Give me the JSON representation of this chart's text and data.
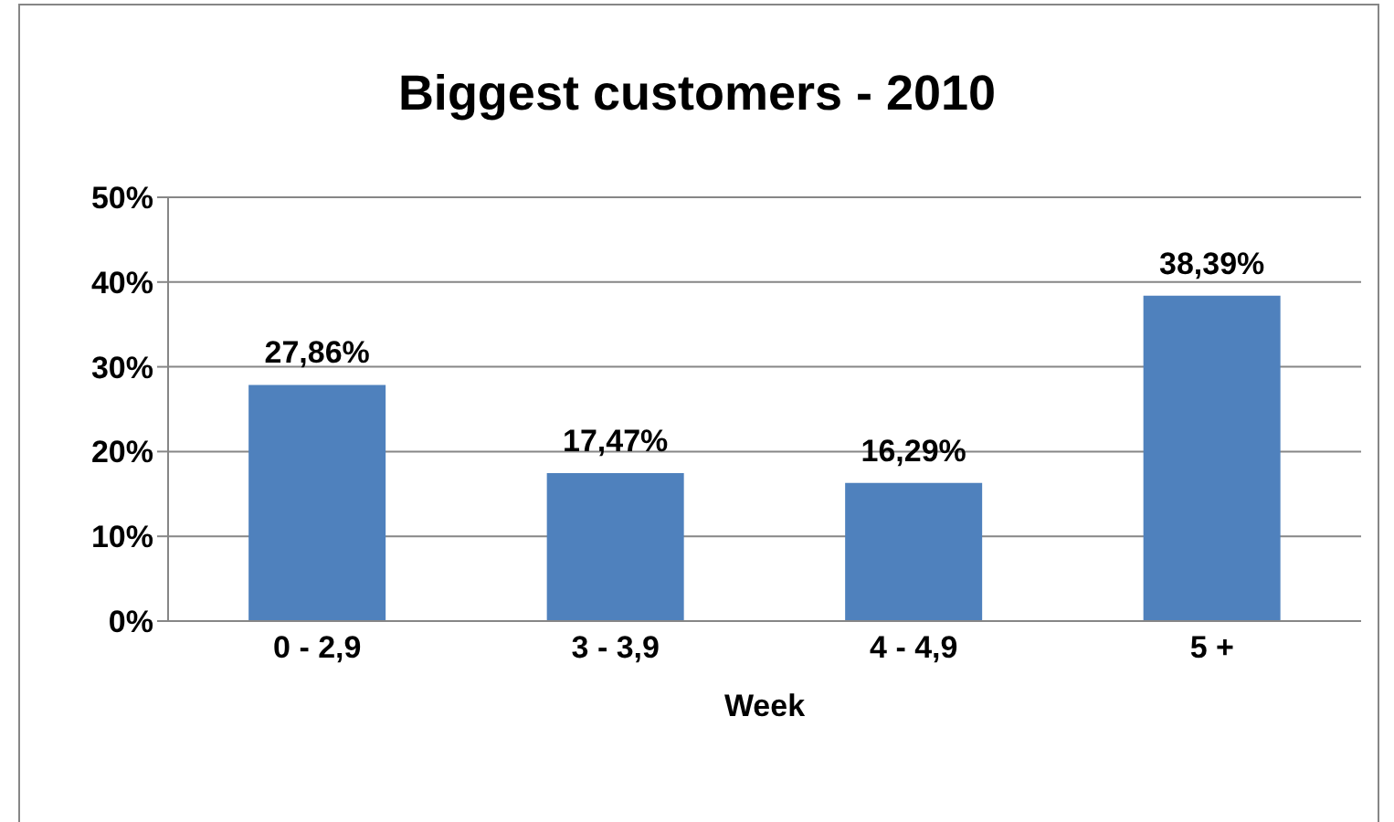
{
  "chart_data": {
    "type": "bar",
    "title": "Biggest customers - 2010",
    "xlabel": "Week",
    "categories": [
      "0 - 2,9",
      "3 - 3,9",
      "4 - 4,9",
      "5 +"
    ],
    "values": [
      27.86,
      17.47,
      16.29,
      38.39
    ],
    "value_labels": [
      "27,86%",
      "17,47%",
      "16,29%",
      "38,39%"
    ],
    "color": "#4f81bd",
    "ylim": [
      0,
      50
    ],
    "yticks": [
      {
        "value": 0,
        "label": "0%"
      },
      {
        "value": 10,
        "label": "10%"
      },
      {
        "value": 20,
        "label": "20%"
      },
      {
        "value": 30,
        "label": "30%"
      },
      {
        "value": 40,
        "label": "40%"
      },
      {
        "value": 50,
        "label": "50%"
      }
    ],
    "grid": "y",
    "legend": false
  }
}
